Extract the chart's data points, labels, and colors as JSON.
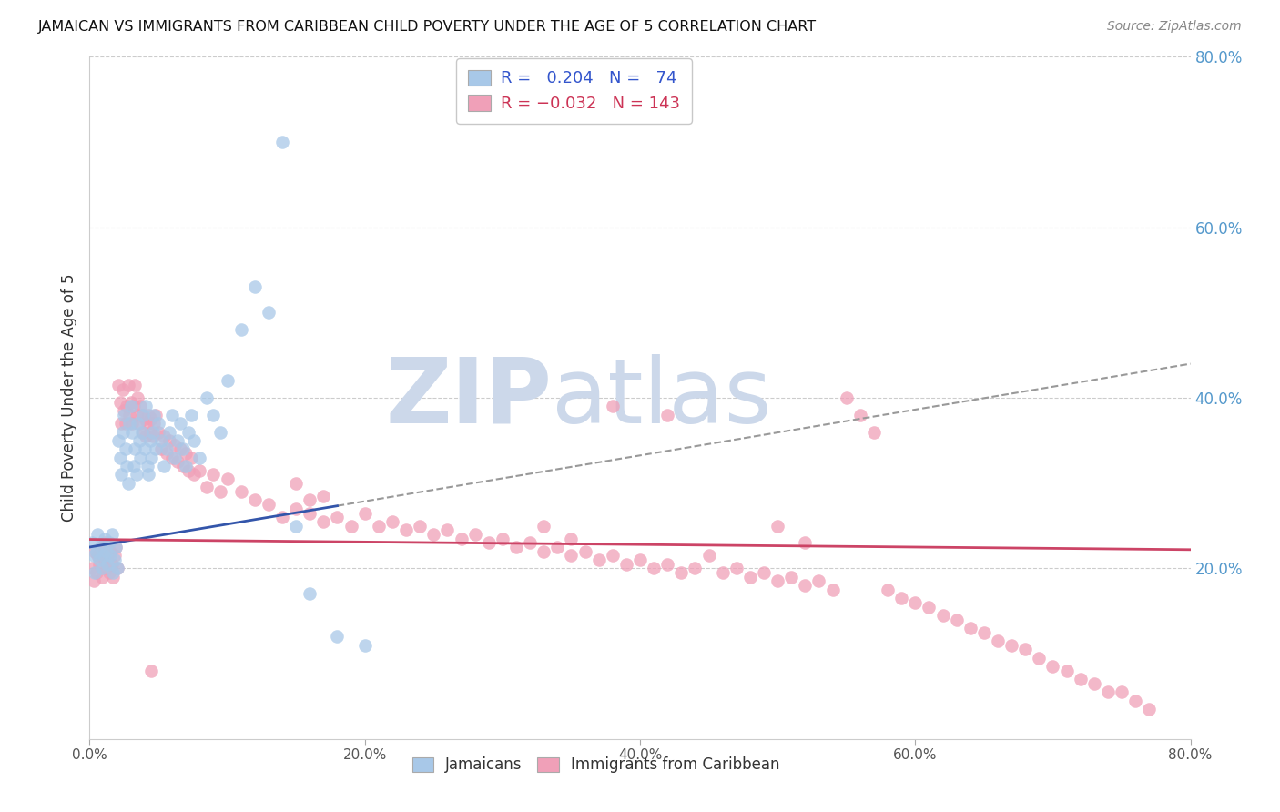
{
  "title": "JAMAICAN VS IMMIGRANTS FROM CARIBBEAN CHILD POVERTY UNDER THE AGE OF 5 CORRELATION CHART",
  "source": "Source: ZipAtlas.com",
  "ylabel": "Child Poverty Under the Age of 5",
  "xlim": [
    0.0,
    0.8
  ],
  "ylim": [
    0.0,
    0.8
  ],
  "xticks": [
    0.0,
    0.2,
    0.4,
    0.6,
    0.8
  ],
  "yticks_right": [
    0.2,
    0.4,
    0.6,
    0.8
  ],
  "xticklabels": [
    "0.0%",
    "20.0%",
    "40.0%",
    "60.0%",
    "80.0%"
  ],
  "yticklabels_right": [
    "20.0%",
    "40.0%",
    "60.0%",
    "80.0%"
  ],
  "blue_color": "#a8c8e8",
  "pink_color": "#f0a0b8",
  "blue_line_color": "#3355aa",
  "pink_line_color": "#cc4466",
  "watermark_color": "#ccd8ea",
  "background_color": "#ffffff",
  "grid_color": "#cccccc",
  "jamaicans_x": [
    0.002,
    0.003,
    0.004,
    0.005,
    0.006,
    0.007,
    0.008,
    0.009,
    0.01,
    0.011,
    0.012,
    0.013,
    0.014,
    0.015,
    0.016,
    0.017,
    0.018,
    0.019,
    0.02,
    0.021,
    0.022,
    0.023,
    0.024,
    0.025,
    0.026,
    0.027,
    0.028,
    0.029,
    0.03,
    0.031,
    0.032,
    0.033,
    0.034,
    0.035,
    0.036,
    0.037,
    0.038,
    0.039,
    0.04,
    0.041,
    0.042,
    0.043,
    0.044,
    0.045,
    0.046,
    0.047,
    0.048,
    0.05,
    0.052,
    0.054,
    0.056,
    0.058,
    0.06,
    0.062,
    0.064,
    0.066,
    0.068,
    0.07,
    0.072,
    0.074,
    0.076,
    0.08,
    0.085,
    0.09,
    0.095,
    0.1,
    0.11,
    0.12,
    0.13,
    0.14,
    0.15,
    0.16,
    0.18,
    0.2
  ],
  "jamaicans_y": [
    0.23,
    0.215,
    0.195,
    0.22,
    0.24,
    0.21,
    0.225,
    0.2,
    0.215,
    0.235,
    0.22,
    0.205,
    0.23,
    0.215,
    0.24,
    0.195,
    0.21,
    0.225,
    0.2,
    0.35,
    0.33,
    0.31,
    0.36,
    0.38,
    0.34,
    0.32,
    0.3,
    0.37,
    0.39,
    0.36,
    0.32,
    0.34,
    0.31,
    0.37,
    0.35,
    0.33,
    0.36,
    0.38,
    0.34,
    0.39,
    0.32,
    0.31,
    0.35,
    0.33,
    0.36,
    0.38,
    0.34,
    0.37,
    0.35,
    0.32,
    0.34,
    0.36,
    0.38,
    0.33,
    0.35,
    0.37,
    0.34,
    0.32,
    0.36,
    0.38,
    0.35,
    0.33,
    0.4,
    0.38,
    0.36,
    0.42,
    0.48,
    0.53,
    0.5,
    0.7,
    0.25,
    0.17,
    0.12,
    0.11
  ],
  "caribbean_x": [
    0.002,
    0.003,
    0.004,
    0.005,
    0.006,
    0.007,
    0.008,
    0.009,
    0.01,
    0.011,
    0.012,
    0.013,
    0.014,
    0.015,
    0.016,
    0.017,
    0.018,
    0.019,
    0.02,
    0.021,
    0.022,
    0.023,
    0.024,
    0.025,
    0.026,
    0.027,
    0.028,
    0.029,
    0.03,
    0.031,
    0.032,
    0.033,
    0.034,
    0.035,
    0.036,
    0.037,
    0.038,
    0.039,
    0.04,
    0.041,
    0.042,
    0.043,
    0.044,
    0.045,
    0.046,
    0.047,
    0.048,
    0.05,
    0.052,
    0.054,
    0.056,
    0.058,
    0.06,
    0.062,
    0.064,
    0.066,
    0.068,
    0.07,
    0.072,
    0.074,
    0.076,
    0.08,
    0.085,
    0.09,
    0.095,
    0.1,
    0.11,
    0.12,
    0.13,
    0.14,
    0.15,
    0.16,
    0.17,
    0.18,
    0.19,
    0.2,
    0.21,
    0.22,
    0.23,
    0.24,
    0.25,
    0.26,
    0.27,
    0.28,
    0.29,
    0.3,
    0.31,
    0.32,
    0.33,
    0.34,
    0.35,
    0.36,
    0.37,
    0.38,
    0.39,
    0.4,
    0.41,
    0.42,
    0.43,
    0.44,
    0.45,
    0.46,
    0.47,
    0.48,
    0.49,
    0.5,
    0.51,
    0.52,
    0.53,
    0.54,
    0.55,
    0.56,
    0.57,
    0.58,
    0.59,
    0.6,
    0.61,
    0.62,
    0.63,
    0.64,
    0.65,
    0.66,
    0.67,
    0.68,
    0.69,
    0.7,
    0.71,
    0.72,
    0.73,
    0.74,
    0.75,
    0.76,
    0.77,
    0.5,
    0.52,
    0.045,
    0.38,
    0.42,
    0.15,
    0.16,
    0.17,
    0.33,
    0.35
  ],
  "caribbean_y": [
    0.2,
    0.185,
    0.22,
    0.195,
    0.215,
    0.205,
    0.225,
    0.19,
    0.21,
    0.23,
    0.2,
    0.215,
    0.195,
    0.22,
    0.205,
    0.19,
    0.215,
    0.225,
    0.2,
    0.415,
    0.395,
    0.37,
    0.41,
    0.385,
    0.37,
    0.39,
    0.415,
    0.38,
    0.395,
    0.37,
    0.39,
    0.415,
    0.38,
    0.4,
    0.37,
    0.39,
    0.38,
    0.36,
    0.375,
    0.355,
    0.37,
    0.38,
    0.36,
    0.375,
    0.355,
    0.37,
    0.38,
    0.36,
    0.34,
    0.355,
    0.335,
    0.35,
    0.33,
    0.345,
    0.325,
    0.34,
    0.32,
    0.335,
    0.315,
    0.33,
    0.31,
    0.315,
    0.295,
    0.31,
    0.29,
    0.305,
    0.29,
    0.28,
    0.275,
    0.26,
    0.27,
    0.265,
    0.255,
    0.26,
    0.25,
    0.265,
    0.25,
    0.255,
    0.245,
    0.25,
    0.24,
    0.245,
    0.235,
    0.24,
    0.23,
    0.235,
    0.225,
    0.23,
    0.22,
    0.225,
    0.215,
    0.22,
    0.21,
    0.215,
    0.205,
    0.21,
    0.2,
    0.205,
    0.195,
    0.2,
    0.215,
    0.195,
    0.2,
    0.19,
    0.195,
    0.185,
    0.19,
    0.18,
    0.185,
    0.175,
    0.4,
    0.38,
    0.36,
    0.175,
    0.165,
    0.16,
    0.155,
    0.145,
    0.14,
    0.13,
    0.125,
    0.115,
    0.11,
    0.105,
    0.095,
    0.085,
    0.08,
    0.07,
    0.065,
    0.055,
    0.055,
    0.045,
    0.035,
    0.25,
    0.23,
    0.08,
    0.39,
    0.38,
    0.3,
    0.28,
    0.285,
    0.25,
    0.235
  ]
}
